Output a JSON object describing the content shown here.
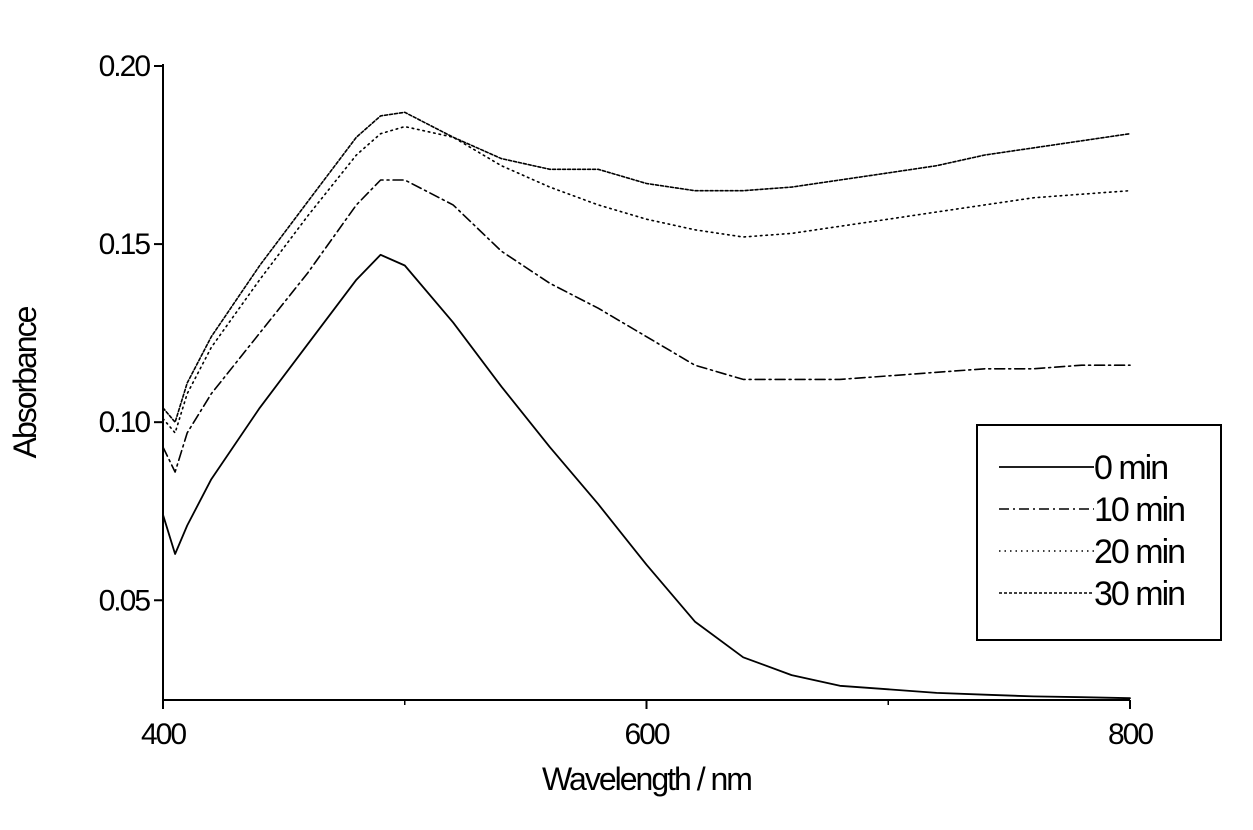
{
  "chart_data": {
    "type": "line",
    "title": "",
    "xlabel": "Wavelength / nm",
    "ylabel": "Absorbance",
    "xlim": [
      400,
      800
    ],
    "ylim": [
      0.022,
      0.2
    ],
    "xticks": [
      400,
      600,
      800
    ],
    "xtick_labels": [
      "400",
      "600",
      "800"
    ],
    "yticks": [
      0.05,
      0.1,
      0.15,
      0.2
    ],
    "ytick_labels": [
      "0.05",
      "0.10",
      "0.15",
      "0.20"
    ],
    "grid": false,
    "legend_position": "right",
    "x": [
      400,
      405,
      410,
      420,
      440,
      460,
      480,
      490,
      500,
      520,
      540,
      560,
      580,
      600,
      620,
      640,
      660,
      680,
      700,
      720,
      740,
      760,
      780,
      800
    ],
    "series": [
      {
        "name": "0 min",
        "style": "solid",
        "color": "#000000",
        "values": [
          0.074,
          0.063,
          0.071,
          0.084,
          0.104,
          0.122,
          0.14,
          0.147,
          0.144,
          0.128,
          0.11,
          0.093,
          0.077,
          0.06,
          0.044,
          0.034,
          0.029,
          0.026,
          0.025,
          0.024,
          0.0235,
          0.023,
          0.0228,
          0.0225
        ]
      },
      {
        "name": "10 min",
        "style": "dashdot",
        "color": "#000000",
        "values": [
          0.093,
          0.086,
          0.097,
          0.108,
          0.125,
          0.142,
          0.161,
          0.168,
          0.168,
          0.161,
          0.148,
          0.139,
          0.132,
          0.124,
          0.116,
          0.112,
          0.112,
          0.112,
          0.113,
          0.114,
          0.115,
          0.115,
          0.116,
          0.116
        ]
      },
      {
        "name": "20 min",
        "style": "dotted",
        "color": "#000000",
        "values": [
          0.101,
          0.097,
          0.108,
          0.121,
          0.14,
          0.158,
          0.175,
          0.181,
          0.183,
          0.18,
          0.172,
          0.166,
          0.161,
          0.157,
          0.154,
          0.152,
          0.153,
          0.155,
          0.157,
          0.159,
          0.161,
          0.163,
          0.164,
          0.165
        ]
      },
      {
        "name": "30 min",
        "style": "short-dash",
        "color": "#000000",
        "values": [
          0.104,
          0.1,
          0.111,
          0.124,
          0.144,
          0.162,
          0.18,
          0.186,
          0.187,
          0.18,
          0.174,
          0.171,
          0.171,
          0.167,
          0.165,
          0.165,
          0.166,
          0.168,
          0.17,
          0.172,
          0.175,
          0.177,
          0.179,
          0.181
        ]
      }
    ]
  }
}
